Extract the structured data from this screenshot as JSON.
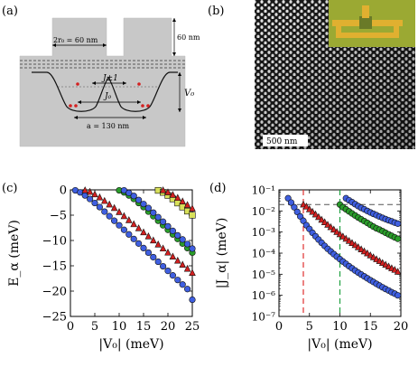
{
  "figure": {
    "panel_labels": {
      "a": "(a)",
      "b": "(b)",
      "c": "(c)",
      "d": "(d)"
    }
  },
  "panel_a": {
    "label_2r0": "2r₀ = 60 nm",
    "label_height": "60 nm",
    "label_J_pm1": "J±1",
    "label_J0": "J₀",
    "label_V0": "V₀",
    "label_a": "a = 130 nm"
  },
  "panel_b": {
    "scale_bar": "500 nm"
  },
  "colors": {
    "blue": "#3f5fe0",
    "green": "#2a9d2a",
    "red": "#d42020",
    "yellow": "#d8e05a",
    "dash_red": "#e03030",
    "dash_green": "#20a040",
    "gray_fill": "#c8c8c8"
  },
  "chart_data": [
    {
      "type": "scatter",
      "id": "c",
      "xlabel": "|V₀| (meV)",
      "ylabel": "E_α (meV)",
      "xlim": [
        0,
        25
      ],
      "ylim": [
        -25,
        0
      ],
      "xticks": [
        "0",
        "5",
        "10",
        "15",
        "20",
        "25"
      ],
      "yticks": [
        "0",
        "−5",
        "−10",
        "−15",
        "−20",
        "−25"
      ],
      "series": [
        {
          "marker": "circle",
          "color": "blue",
          "x": [
            1,
            2,
            3,
            4,
            5,
            6,
            7,
            8,
            9,
            10,
            11,
            12,
            13,
            14,
            15,
            16,
            17,
            18,
            19,
            20,
            21,
            22,
            23,
            24,
            25
          ],
          "y": [
            -0.1,
            -0.5,
            -1.1,
            -1.8,
            -2.6,
            -3.4,
            -4.3,
            -5.2,
            -6.1,
            -7.0,
            -7.9,
            -8.8,
            -9.7,
            -10.6,
            -11.5,
            -12.4,
            -13.3,
            -14.2,
            -15.1,
            -16.0,
            -16.9,
            -17.8,
            -18.7,
            -19.6,
            -21.7
          ]
        },
        {
          "marker": "triangle",
          "color": "red",
          "x": [
            3,
            4,
            5,
            6,
            7,
            8,
            9,
            10,
            11,
            12,
            13,
            14,
            15,
            16,
            17,
            18,
            19,
            20,
            21,
            22,
            23,
            24,
            25
          ],
          "y": [
            -0.1,
            -0.4,
            -0.9,
            -1.5,
            -2.2,
            -2.9,
            -3.6,
            -4.4,
            -5.2,
            -6.0,
            -6.8,
            -7.6,
            -8.4,
            -9.2,
            -10.0,
            -10.8,
            -11.6,
            -12.4,
            -13.2,
            -14.0,
            -14.8,
            -15.6,
            -16.4
          ]
        },
        {
          "marker": "circle",
          "color": "green",
          "x": [
            10,
            11,
            12,
            13,
            14,
            15,
            16,
            17,
            18,
            19,
            20,
            21,
            22,
            23,
            24,
            25
          ],
          "y": [
            -0.1,
            -0.5,
            -1.1,
            -1.8,
            -2.6,
            -3.4,
            -4.3,
            -5.2,
            -6.1,
            -7.0,
            -7.9,
            -8.8,
            -9.7,
            -10.6,
            -11.5,
            -12.4
          ]
        },
        {
          "marker": "circle",
          "color": "blue",
          "x": [
            11,
            12,
            13,
            14,
            15,
            16,
            17,
            18,
            19,
            20,
            21,
            22,
            23,
            24,
            25
          ],
          "y": [
            -0.1,
            -0.6,
            -1.2,
            -2.0,
            -2.8,
            -3.6,
            -4.5,
            -5.4,
            -6.3,
            -7.2,
            -8.1,
            -9.0,
            -9.8,
            -10.7,
            -11.6
          ]
        },
        {
          "marker": "square",
          "color": "yellow",
          "x": [
            18,
            19,
            20,
            21,
            22,
            23,
            24,
            25
          ],
          "y": [
            -0.1,
            -0.5,
            -1.1,
            -1.8,
            -2.6,
            -3.4,
            -4.2,
            -5.0
          ]
        },
        {
          "marker": "triangle",
          "color": "red",
          "x": [
            19,
            20,
            21,
            22,
            23,
            24,
            25
          ],
          "y": [
            -0.1,
            -0.5,
            -1.0,
            -1.6,
            -2.3,
            -3.0,
            -3.7
          ]
        }
      ]
    },
    {
      "type": "scatter",
      "id": "d",
      "xlabel": "|V₀| (meV)",
      "ylabel": "|J_α| (meV)",
      "xlim": [
        0,
        20
      ],
      "ylim_log10": [
        -7,
        -1
      ],
      "xticks": [
        "0",
        "5",
        "10",
        "15",
        "20"
      ],
      "yticks": [
        "10⁻¹",
        "10⁻²",
        "10⁻³",
        "10⁻⁴",
        "10⁻⁵",
        "10⁻⁶",
        "10⁻⁷"
      ],
      "hline_y": 0.02,
      "vlines": [
        {
          "x": 4,
          "color": "dash_red"
        },
        {
          "x": 10,
          "color": "dash_green"
        }
      ],
      "series": [
        {
          "marker": "circle",
          "color": "blue",
          "x": [
            1.5,
            2,
            2.5,
            3,
            3.5,
            4,
            4.5,
            5,
            5.5,
            6,
            6.5,
            7,
            7.5,
            8,
            8.5,
            9,
            9.5,
            10,
            10.5,
            11,
            11.5,
            12,
            12.5,
            13,
            13.5,
            14,
            14.5,
            15,
            15.5,
            16,
            16.5,
            17,
            17.5,
            18,
            18.5,
            19,
            19.5
          ],
          "y": [
            0.04,
            0.025,
            0.015,
            0.009,
            0.0055,
            0.0034,
            0.0021,
            0.0014,
            0.00092,
            0.00063,
            0.00044,
            0.00031,
            0.00022,
            0.00016,
            0.00012,
            9e-05,
            6.8e-05,
            5.2e-05,
            4e-05,
            3.1e-05,
            2.4e-05,
            1.9e-05,
            1.5e-05,
            1.2e-05,
            9.7e-06,
            7.9e-06,
            6.4e-06,
            5.2e-06,
            4.3e-06,
            3.5e-06,
            2.9e-06,
            2.4e-06,
            2e-06,
            1.7e-06,
            1.4e-06,
            1.2e-06,
            1e-06
          ]
        },
        {
          "marker": "triangle",
          "color": "red",
          "x": [
            4,
            4.5,
            5,
            5.5,
            6,
            6.5,
            7,
            7.5,
            8,
            8.5,
            9,
            9.5,
            10,
            10.5,
            11,
            11.5,
            12,
            12.5,
            13,
            13.5,
            14,
            14.5,
            15,
            15.5,
            16,
            16.5,
            17,
            17.5,
            18,
            18.5,
            19,
            19.5
          ],
          "y": [
            0.02,
            0.016,
            0.012,
            0.009,
            0.0068,
            0.0051,
            0.0038,
            0.0029,
            0.0022,
            0.0017,
            0.0013,
            0.001,
            0.00078,
            0.00061,
            0.00048,
            0.00038,
            0.0003,
            0.00024,
            0.00019,
            0.00015,
            0.00012,
            9.7e-05,
            7.8e-05,
            6.3e-05,
            5.1e-05,
            4.2e-05,
            3.4e-05,
            2.8e-05,
            2.3e-05,
            1.9e-05,
            1.6e-05,
            1.3e-05
          ]
        },
        {
          "marker": "circle",
          "color": "green",
          "x": [
            10,
            10.5,
            11,
            11.5,
            12,
            12.5,
            13,
            13.5,
            14,
            14.5,
            15,
            15.5,
            16,
            16.5,
            17,
            17.5,
            18,
            18.5,
            19,
            19.5
          ],
          "y": [
            0.02,
            0.015,
            0.012,
            0.0095,
            0.0076,
            0.0061,
            0.0049,
            0.004,
            0.0033,
            0.0027,
            0.0022,
            0.0018,
            0.0015,
            0.0013,
            0.0011,
            0.00092,
            0.00078,
            0.00066,
            0.00056,
            0.00048
          ]
        },
        {
          "marker": "circle",
          "color": "blue",
          "x": [
            11,
            11.5,
            12,
            12.5,
            13,
            13.5,
            14,
            14.5,
            15,
            15.5,
            16,
            16.5,
            17,
            17.5,
            18,
            18.5,
            19,
            19.5
          ],
          "y": [
            0.04,
            0.032,
            0.026,
            0.021,
            0.017,
            0.014,
            0.012,
            0.01,
            0.0085,
            0.0073,
            0.0063,
            0.0054,
            0.0047,
            0.0041,
            0.0036,
            0.0032,
            0.0028,
            0.0025
          ]
        }
      ]
    }
  ]
}
